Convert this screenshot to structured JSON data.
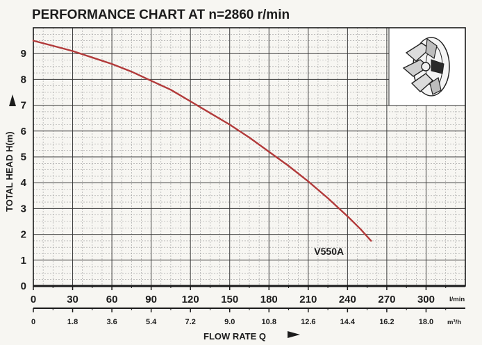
{
  "chart_data": {
    "type": "line",
    "title": "PERFORMANCE CHART AT n=2860 r/min",
    "xlabel": "FLOW RATE Q",
    "ylabel": "TOTAL HEAD H(m)",
    "x_unit": "l/min",
    "x2_unit": "m³/h",
    "xlim": [
      0,
      330
    ],
    "ylim": [
      0,
      10
    ],
    "x_ticks": [
      "0",
      "30",
      "60",
      "90",
      "120",
      "150",
      "180",
      "210",
      "240",
      "270",
      "300"
    ],
    "x2_ticks": [
      "0",
      "1.8",
      "3.6",
      "5.4",
      "7.2",
      "9.0",
      "10.8",
      "12.6",
      "14.4",
      "16.2",
      "18.0"
    ],
    "y_ticks": [
      "0",
      "1",
      "2",
      "3",
      "4",
      "5",
      "6",
      "7",
      "8",
      "9"
    ],
    "grid": true,
    "series": [
      {
        "name": "V550A",
        "color": "#b23a3a",
        "x": [
          0,
          15,
          30,
          45,
          60,
          75,
          90,
          105,
          120,
          135,
          150,
          165,
          180,
          195,
          210,
          225,
          240,
          250,
          258
        ],
        "y": [
          9.5,
          9.3,
          9.1,
          8.85,
          8.6,
          8.3,
          7.95,
          7.6,
          7.15,
          6.7,
          6.25,
          5.75,
          5.2,
          4.65,
          4.05,
          3.4,
          2.7,
          2.2,
          1.75
        ]
      }
    ]
  },
  "impeller_icon": "impeller-icon"
}
